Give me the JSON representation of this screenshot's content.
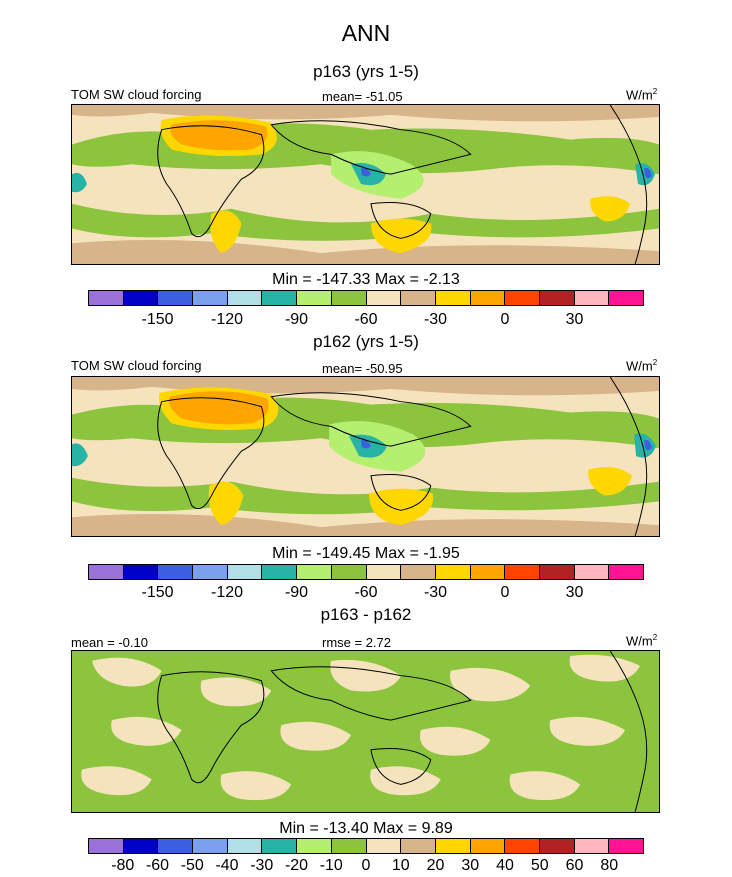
{
  "title": "ANN",
  "panels": [
    {
      "subtitle": "p163 (yrs 1-5)",
      "left_label": "TOM SW cloud forcing",
      "center_label": "mean= -51.05",
      "unit_base": "W/m",
      "unit_exp": "2",
      "minmax": "Min = -147.33 Max =  -2.13",
      "colorbar": {
        "colors": [
          "#9a71d8",
          "#0000c7",
          "#3a5fe0",
          "#7aa0ee",
          "#b0e0e6",
          "#27b3a5",
          "#b5ef70",
          "#8cc43e",
          "#f5e3bd",
          "#d8b48a",
          "#ffd700",
          "#ffa500",
          "#ff4500",
          "#b22222",
          "#ffb6c1",
          "#ff1493"
        ],
        "ticks": [
          "-150",
          "-120",
          "-90",
          "-60",
          "-30",
          "0",
          "30"
        ],
        "tick_index": [
          2,
          4,
          6,
          8,
          10,
          12,
          14
        ]
      }
    },
    {
      "subtitle": "p162 (yrs 1-5)",
      "left_label": "TOM SW cloud forcing",
      "center_label": "mean= -50.95",
      "unit_base": "W/m",
      "unit_exp": "2",
      "minmax": "Min = -149.45 Max =  -1.95",
      "colorbar": {
        "colors": [
          "#9a71d8",
          "#0000c7",
          "#3a5fe0",
          "#7aa0ee",
          "#b0e0e6",
          "#27b3a5",
          "#b5ef70",
          "#8cc43e",
          "#f5e3bd",
          "#d8b48a",
          "#ffd700",
          "#ffa500",
          "#ff4500",
          "#b22222",
          "#ffb6c1",
          "#ff1493"
        ],
        "ticks": [
          "-150",
          "-120",
          "-90",
          "-60",
          "-30",
          "0",
          "30"
        ],
        "tick_index": [
          2,
          4,
          6,
          8,
          10,
          12,
          14
        ]
      }
    },
    {
      "subtitle": "p163 - p162",
      "left_label": "mean =  -0.10",
      "center_label": "rmse =   2.72",
      "unit_base": "W/m",
      "unit_exp": "2",
      "minmax": "Min = -13.40 Max =   9.89",
      "colorbar": {
        "colors": [
          "#9a71d8",
          "#0000c7",
          "#3a5fe0",
          "#7aa0ee",
          "#b0e0e6",
          "#27b3a5",
          "#b5ef70",
          "#8cc43e",
          "#f5e3bd",
          "#d8b48a",
          "#ffd700",
          "#ffa500",
          "#ff4500",
          "#b22222",
          "#ffb6c1",
          "#ff1493"
        ],
        "ticks": [
          "-80",
          "-60",
          "-50",
          "-40",
          "-30",
          "-20",
          "-10",
          "0",
          "10",
          "20",
          "30",
          "40",
          "50",
          "60",
          "80"
        ],
        "tick_index": [
          1,
          2,
          3,
          4,
          5,
          6,
          7,
          8,
          9,
          10,
          11,
          12,
          13,
          14,
          15
        ]
      }
    }
  ]
}
